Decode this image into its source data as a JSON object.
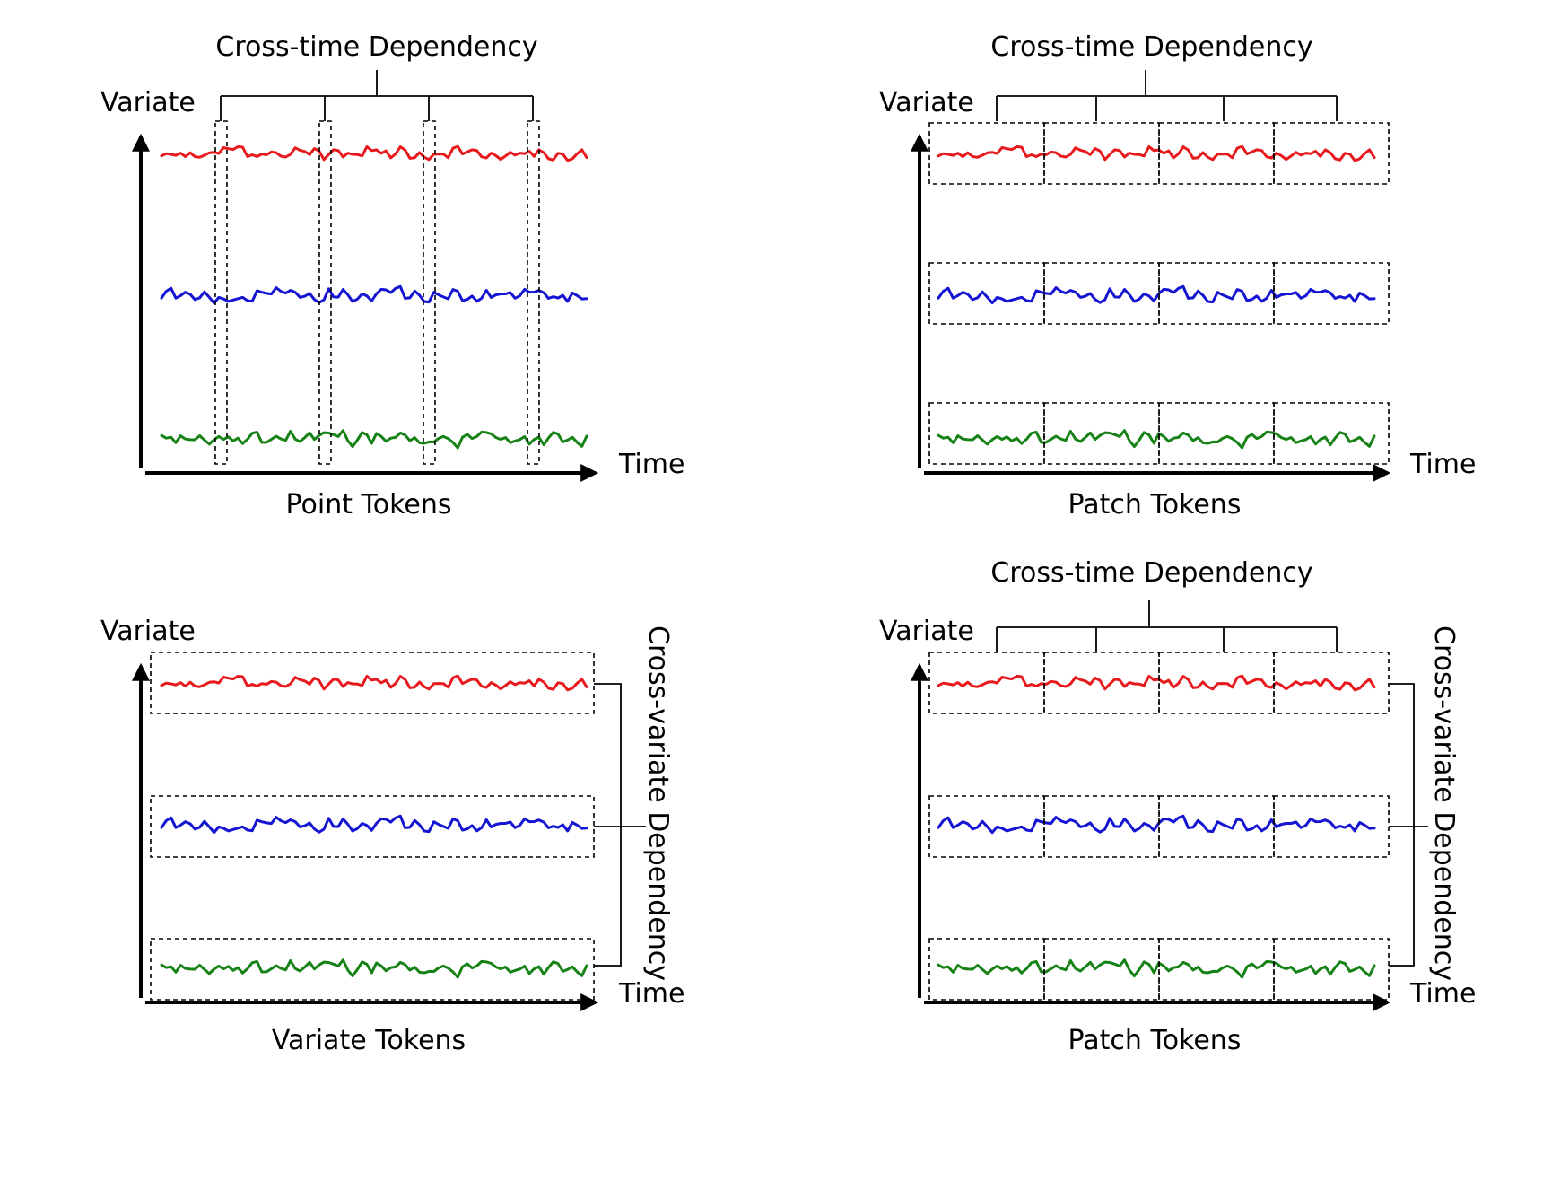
{
  "colors": {
    "series_1": "#e8191c",
    "series_2": "#1414d2",
    "series_3": "#168216",
    "ink": "#000000"
  },
  "labels": {
    "variate": "Variate",
    "time": "Time",
    "cross_time": "Cross-time Dependency",
    "cross_variate": "Cross-variate Dependency",
    "point_tokens": "Point Tokens",
    "patch_tokens": "Patch Tokens",
    "variate_tokens": "Variate Tokens"
  },
  "panels": [
    {
      "id": "point",
      "token_type": "point",
      "caption": "Point Tokens",
      "cross_time": true,
      "cross_variate": false,
      "tokens_per_series": 4
    },
    {
      "id": "patch",
      "token_type": "patch",
      "caption": "Patch Tokens",
      "cross_time": true,
      "cross_variate": false,
      "tokens_per_series": 4
    },
    {
      "id": "variate",
      "token_type": "variate",
      "caption": "Variate Tokens",
      "cross_time": false,
      "cross_variate": true,
      "tokens_per_series": 1
    },
    {
      "id": "patch-both",
      "token_type": "patch",
      "caption": "Patch Tokens",
      "cross_time": true,
      "cross_variate": true,
      "tokens_per_series": 4
    }
  ]
}
